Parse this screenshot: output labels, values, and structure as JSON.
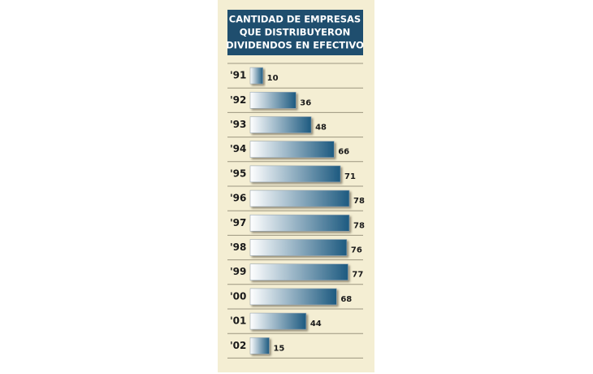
{
  "chart_data": {
    "type": "bar",
    "orientation": "horizontal",
    "title": [
      "CANTIDAD DE EMPRESAS",
      "QUE DISTRIBUYERON",
      "DIVIDENDOS EN EFECTIVO"
    ],
    "categories": [
      "'91",
      "'92",
      "'93",
      "'94",
      "'95",
      "'96",
      "'97",
      "'98",
      "'99",
      "'00",
      "'01",
      "'02"
    ],
    "values": [
      10,
      36,
      48,
      66,
      71,
      78,
      78,
      76,
      77,
      68,
      44,
      15
    ],
    "color": "#1d5a80"
  }
}
